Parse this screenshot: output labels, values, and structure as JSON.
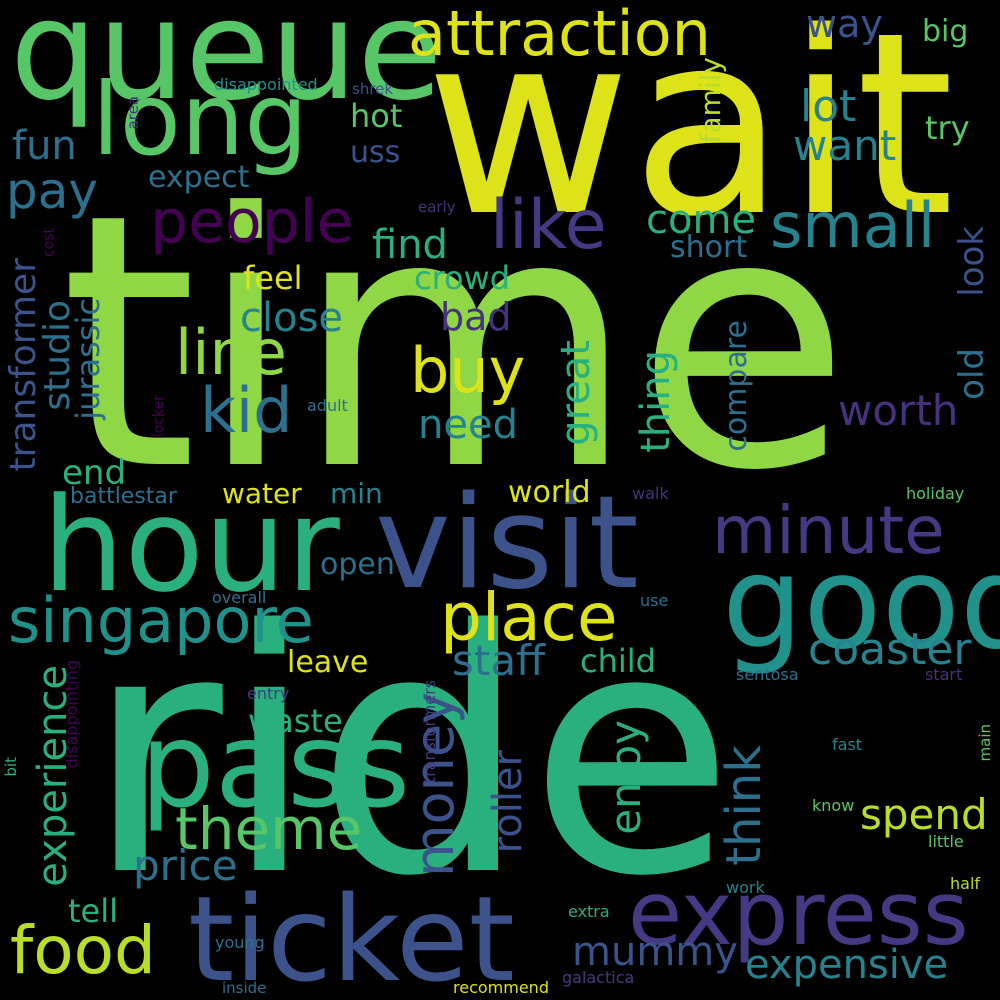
{
  "colors": {
    "background": "#000000",
    "palette": [
      "#dde318",
      "#b8de29",
      "#8fd744",
      "#56c667",
      "#2ab07f",
      "#21918c",
      "#26828e",
      "#2d708e",
      "#3b528b",
      "#443a83",
      "#46327e",
      "#440154"
    ]
  },
  "words": [
    {
      "text": "time",
      "color": "#8fd744"
    },
    {
      "text": "wait",
      "color": "#dde318"
    },
    {
      "text": "ride",
      "color": "#2ab07f"
    },
    {
      "text": "queue",
      "color": "#56c667"
    },
    {
      "text": "hour",
      "color": "#2ab07f"
    },
    {
      "text": "visit",
      "color": "#3b528b"
    },
    {
      "text": "good",
      "color": "#21918c"
    },
    {
      "text": "pass",
      "color": "#2ab07f"
    },
    {
      "text": "ticket",
      "color": "#3b528b"
    },
    {
      "text": "express",
      "color": "#443a83"
    },
    {
      "text": "long",
      "color": "#56c667"
    },
    {
      "text": "attraction",
      "color": "#dde318"
    },
    {
      "text": "singapore",
      "color": "#21918c"
    },
    {
      "text": "place",
      "color": "#dde318"
    },
    {
      "text": "minute",
      "color": "#443a83"
    },
    {
      "text": "people",
      "color": "#440154"
    },
    {
      "text": "like",
      "color": "#443a83"
    },
    {
      "text": "small",
      "color": "#26828e"
    },
    {
      "text": "line",
      "color": "#8fd744"
    },
    {
      "text": "buy",
      "color": "#dde318"
    },
    {
      "text": "kid",
      "color": "#2d708e"
    },
    {
      "text": "food",
      "color": "#b8de29"
    },
    {
      "text": "theme",
      "color": "#56c667"
    },
    {
      "text": "money",
      "color": "#3b528b"
    },
    {
      "text": "coaster",
      "color": "#26828e"
    },
    {
      "text": "staff",
      "color": "#2d708e"
    },
    {
      "text": "experience",
      "color": "#2ab07f"
    },
    {
      "text": "mummy",
      "color": "#3b528b"
    },
    {
      "text": "expensive",
      "color": "#26828e"
    },
    {
      "text": "price",
      "color": "#2d708e"
    },
    {
      "text": "spend",
      "color": "#b8de29"
    },
    {
      "text": "roller",
      "color": "#3b528b"
    },
    {
      "text": "enjoy",
      "color": "#2ab07f"
    },
    {
      "text": "think",
      "color": "#2d708e"
    },
    {
      "text": "worth",
      "color": "#46327e"
    },
    {
      "text": "great",
      "color": "#2ab07f"
    },
    {
      "text": "thing",
      "color": "#2ab07f"
    },
    {
      "text": "transformer",
      "color": "#3b528b"
    },
    {
      "text": "studio",
      "color": "#2d708e"
    },
    {
      "text": "jurassic",
      "color": "#2d708e"
    },
    {
      "text": "pay",
      "color": "#2d708e"
    },
    {
      "text": "fun",
      "color": "#2d708e"
    },
    {
      "text": "lot",
      "color": "#26828e"
    },
    {
      "text": "want",
      "color": "#26828e"
    },
    {
      "text": "way",
      "color": "#3b528b"
    },
    {
      "text": "big",
      "color": "#56c667"
    },
    {
      "text": "try",
      "color": "#56c667"
    },
    {
      "text": "family",
      "color": "#b8de29"
    },
    {
      "text": "hot",
      "color": "#56c667"
    },
    {
      "text": "uss",
      "color": "#3b528b"
    },
    {
      "text": "expect",
      "color": "#2d708e"
    },
    {
      "text": "come",
      "color": "#2ab07f"
    },
    {
      "text": "short",
      "color": "#2d708e"
    },
    {
      "text": "find",
      "color": "#2ab07f"
    },
    {
      "text": "crowd",
      "color": "#2ab07f"
    },
    {
      "text": "feel",
      "color": "#dde318"
    },
    {
      "text": "close",
      "color": "#26828e"
    },
    {
      "text": "bad",
      "color": "#46327e"
    },
    {
      "text": "need",
      "color": "#26828e"
    },
    {
      "text": "old",
      "color": "#2d708e"
    },
    {
      "text": "look",
      "color": "#3b528b"
    },
    {
      "text": "compare",
      "color": "#2d708e"
    },
    {
      "text": "end",
      "color": "#2ab07f"
    },
    {
      "text": "battlestar",
      "color": "#2d708e"
    },
    {
      "text": "water",
      "color": "#dde318"
    },
    {
      "text": "min",
      "color": "#26828e"
    },
    {
      "text": "world",
      "color": "#dde318"
    },
    {
      "text": "open",
      "color": "#2d708e"
    },
    {
      "text": "leave",
      "color": "#dde318"
    },
    {
      "text": "child",
      "color": "#2ab07f"
    },
    {
      "text": "waste",
      "color": "#2ab07f"
    },
    {
      "text": "tell",
      "color": "#2ab07f"
    },
    {
      "text": "disappointed",
      "color": "#21918c"
    },
    {
      "text": "shrek",
      "color": "#3b528b"
    },
    {
      "text": "area",
      "color": "#46327e"
    },
    {
      "text": "early",
      "color": "#46327e"
    },
    {
      "text": "cost",
      "color": "#440154"
    },
    {
      "text": "adult",
      "color": "#2d708e"
    },
    {
      "text": "locker",
      "color": "#440154"
    },
    {
      "text": "walk",
      "color": "#46327e"
    },
    {
      "text": "holiday",
      "color": "#56c667"
    },
    {
      "text": "overall",
      "color": "#2d708e"
    },
    {
      "text": "use",
      "color": "#2d708e"
    },
    {
      "text": "entry",
      "color": "#443a83"
    },
    {
      "text": "sentosa",
      "color": "#2d708e"
    },
    {
      "text": "start",
      "color": "#46327e"
    },
    {
      "text": "transformers",
      "color": "#443a83"
    },
    {
      "text": "disappointing",
      "color": "#440154"
    },
    {
      "text": "bit",
      "color": "#2ab07f"
    },
    {
      "text": "main",
      "color": "#56c667"
    },
    {
      "text": "fast",
      "color": "#26828e"
    },
    {
      "text": "know",
      "color": "#56c667"
    },
    {
      "text": "little",
      "color": "#56c667"
    },
    {
      "text": "work",
      "color": "#26828e"
    },
    {
      "text": "half",
      "color": "#b8de29"
    },
    {
      "text": "extra",
      "color": "#2ab07f"
    },
    {
      "text": "young",
      "color": "#2d708e"
    },
    {
      "text": "galactica",
      "color": "#443a83"
    },
    {
      "text": "inside",
      "color": "#2d708e"
    },
    {
      "text": "recommend",
      "color": "#dde318"
    }
  ]
}
